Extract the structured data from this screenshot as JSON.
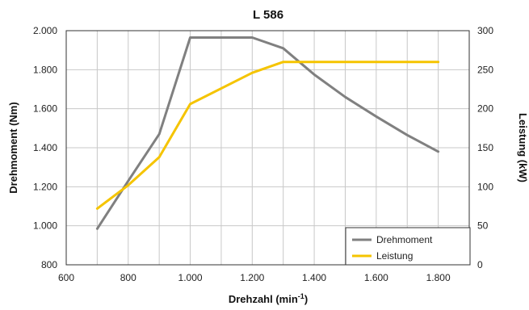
{
  "chart_data": {
    "type": "line",
    "title": "L 586",
    "xlabel_main": "Drehzahl (min",
    "xlabel_sup": "-1",
    "xlabel_end": ")",
    "ylabel_left": "Drehmoment (Nm)",
    "ylabel_right": "Leistung (kW)",
    "xlim": [
      600,
      1900
    ],
    "ylim_left": [
      800,
      2000
    ],
    "ylim_right": [
      0,
      300
    ],
    "x_ticks": [
      600,
      800,
      1000,
      1200,
      1400,
      1600,
      1800
    ],
    "x_tick_labels": [
      "600",
      "800",
      "1.000",
      "1.200",
      "1.400",
      "1.600",
      "1.800"
    ],
    "y_left_ticks": [
      800,
      1000,
      1200,
      1400,
      1600,
      1800,
      2000
    ],
    "y_left_tick_labels": [
      "800",
      "1.000",
      "1.200",
      "1.400",
      "1.600",
      "1.800",
      "2.000"
    ],
    "y_right_ticks": [
      0,
      50,
      100,
      150,
      200,
      250,
      300
    ],
    "y_right_tick_labels": [
      "0",
      "50",
      "100",
      "150",
      "200",
      "250",
      "300"
    ],
    "grid": true,
    "legend_position": "bottom-right",
    "series": [
      {
        "name": "Drehmoment",
        "axis": "left",
        "color": "#808080",
        "x": [
          700,
          800,
          900,
          1000,
          1200,
          1300,
          1400,
          1500,
          1600,
          1700,
          1800
        ],
        "y": [
          985,
          1230,
          1470,
          1965,
          1965,
          1910,
          1775,
          1660,
          1560,
          1465,
          1380
        ]
      },
      {
        "name": "Leistung",
        "axis": "right",
        "color": "#f5c400",
        "x": [
          700,
          800,
          900,
          1000,
          1200,
          1300,
          1400,
          1600,
          1800
        ],
        "y": [
          72,
          102,
          138,
          206,
          246,
          260,
          260,
          260,
          260
        ]
      }
    ]
  }
}
